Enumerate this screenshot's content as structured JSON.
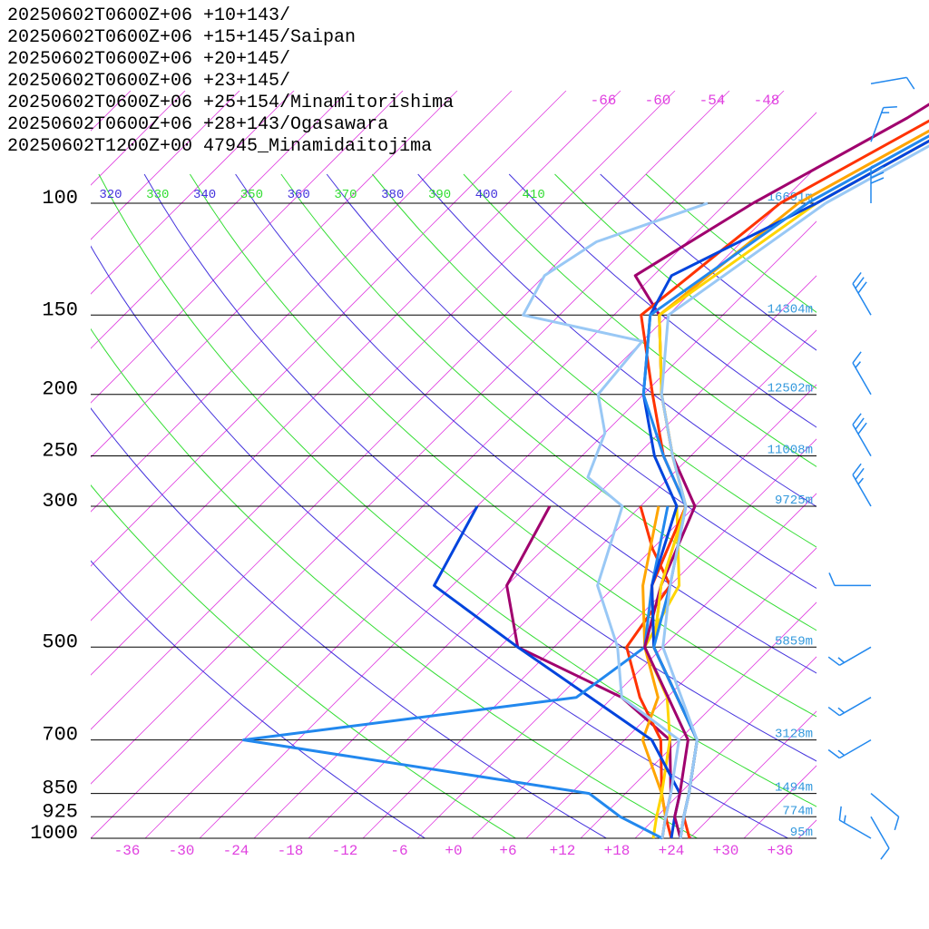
{
  "chart_data": {
    "type": "line",
    "title": "",
    "xlabel": "",
    "ylabel": "",
    "xlim": [
      -40,
      40
    ],
    "ylim_hpa": [
      1000,
      100
    ],
    "pressure_levels": [
      100,
      150,
      200,
      250,
      300,
      500,
      700,
      850,
      925,
      1000
    ],
    "height_labels": [
      "16691m",
      "14304m",
      "12502m",
      "11008m",
      "9725m",
      "5859m",
      "3128m",
      "1494m",
      "774m",
      "95m"
    ],
    "x_tick_labels": [
      "-36",
      "-30",
      "-24",
      "-18",
      "-12",
      "-6",
      "+0",
      "+6",
      "+12",
      "+18",
      "+24",
      "+30",
      "+36"
    ],
    "x_ticks": [
      -36,
      -30,
      -24,
      -18,
      -12,
      -6,
      0,
      6,
      12,
      18,
      24,
      30,
      36
    ],
    "theta_labels": [
      "320",
      "330",
      "340",
      "350",
      "360",
      "370",
      "380",
      "390",
      "400",
      "410"
    ],
    "upper_isotherm_labels": [
      "-66",
      "-60",
      "-54",
      "-48"
    ],
    "grid": true,
    "legend_position": "top-left",
    "series": [
      {
        "name": "20250602T0600Z+06 +10+143/",
        "color": "#a0006e",
        "temperature": [
          [
            1000,
            25
          ],
          [
            925,
            22
          ],
          [
            850,
            20
          ],
          [
            700,
            15
          ],
          [
            500,
            0
          ],
          [
            400,
            -5
          ],
          [
            300,
            -10
          ],
          [
            250,
            -18
          ],
          [
            200,
            -26
          ],
          [
            150,
            -35
          ],
          [
            130,
            -42
          ],
          [
            100,
            -37
          ]
        ],
        "dewpoint": [
          [
            1000,
            23
          ],
          [
            925,
            21
          ],
          [
            850,
            19
          ],
          [
            700,
            13
          ],
          [
            600,
            3
          ],
          [
            500,
            -14
          ],
          [
            400,
            -22
          ],
          [
            300,
            -26
          ]
        ]
      },
      {
        "name": "20250602T0600Z+06 +15+145/Saipan",
        "color": "#ff3300",
        "temperature": [
          [
            1000,
            26
          ],
          [
            925,
            23
          ],
          [
            850,
            21
          ],
          [
            700,
            16
          ],
          [
            500,
            1
          ],
          [
            400,
            -6
          ],
          [
            300,
            -11
          ],
          [
            250,
            -19
          ],
          [
            200,
            -27
          ],
          [
            150,
            -37
          ],
          [
            100,
            -34
          ]
        ],
        "dewpoint": [
          [
            1000,
            24
          ],
          [
            925,
            21
          ],
          [
            850,
            18
          ],
          [
            700,
            12
          ],
          [
            600,
            5
          ],
          [
            500,
            -2
          ],
          [
            400,
            -4
          ],
          [
            350,
            -10
          ],
          [
            300,
            -16
          ]
        ]
      },
      {
        "name": "20250602T0600Z+06 +20+145/",
        "color": "#ffa500",
        "temperature": [
          [
            1000,
            25
          ],
          [
            925,
            23
          ],
          [
            850,
            21
          ],
          [
            700,
            16
          ],
          [
            500,
            1
          ],
          [
            400,
            -5
          ],
          [
            300,
            -11
          ],
          [
            250,
            -18
          ],
          [
            200,
            -26
          ],
          [
            150,
            -35
          ],
          [
            100,
            -32
          ]
        ],
        "dewpoint": [
          [
            1000,
            23
          ],
          [
            925,
            21
          ],
          [
            850,
            18
          ],
          [
            700,
            10
          ],
          [
            600,
            7
          ],
          [
            500,
            0
          ],
          [
            400,
            -7
          ],
          [
            300,
            -14
          ]
        ]
      },
      {
        "name": "20250602T0600Z+06 +23+145/",
        "color": "#ffd500",
        "temperature": [
          [
            1000,
            25
          ],
          [
            925,
            23
          ],
          [
            850,
            21
          ],
          [
            700,
            16
          ],
          [
            500,
            1
          ],
          [
            400,
            -5
          ],
          [
            300,
            -11
          ],
          [
            250,
            -18
          ],
          [
            200,
            -26
          ],
          [
            150,
            -35
          ],
          [
            100,
            -30
          ]
        ],
        "dewpoint": [
          [
            1000,
            22
          ],
          [
            925,
            20
          ],
          [
            850,
            18
          ],
          [
            700,
            13
          ],
          [
            600,
            8
          ],
          [
            500,
            0
          ],
          [
            400,
            -3
          ],
          [
            300,
            -12
          ]
        ]
      },
      {
        "name": "20250602T0600Z+06 +25+154/Minamitorishima",
        "color": "#0044dd",
        "temperature": [
          [
            1000,
            25
          ],
          [
            925,
            23
          ],
          [
            850,
            21
          ],
          [
            700,
            16
          ],
          [
            500,
            1
          ],
          [
            400,
            -6
          ],
          [
            300,
            -12
          ],
          [
            250,
            -20
          ],
          [
            200,
            -28
          ],
          [
            150,
            -36
          ],
          [
            130,
            -38
          ],
          [
            100,
            -30
          ]
        ],
        "dewpoint": [
          [
            1000,
            24
          ],
          [
            925,
            22
          ],
          [
            850,
            20
          ],
          [
            700,
            11
          ],
          [
            500,
            -14
          ],
          [
            400,
            -30
          ],
          [
            300,
            -34
          ]
        ]
      },
      {
        "name": "20250602T0600Z+06 +28+143/Ogasawara",
        "color": "#2288ee",
        "temperature": [
          [
            1000,
            25
          ],
          [
            925,
            23
          ],
          [
            850,
            21
          ],
          [
            700,
            16
          ],
          [
            500,
            1
          ],
          [
            400,
            -4
          ],
          [
            300,
            -11
          ],
          [
            250,
            -19
          ],
          [
            200,
            -28
          ],
          [
            150,
            -36
          ],
          [
            100,
            -31
          ]
        ],
        "dewpoint": [
          [
            1000,
            23
          ],
          [
            925,
            16
          ],
          [
            850,
            10
          ],
          [
            700,
            -34
          ],
          [
            600,
            -2
          ],
          [
            500,
            0
          ],
          [
            400,
            -6
          ],
          [
            300,
            -13
          ]
        ]
      },
      {
        "name": "20250602T1200Z+00 47945_Minamidaitojima",
        "color": "#99c8f5",
        "temperature": [
          [
            1000,
            25
          ],
          [
            925,
            23
          ],
          [
            850,
            21
          ],
          [
            700,
            16
          ],
          [
            500,
            2
          ],
          [
            400,
            -4
          ],
          [
            300,
            -11
          ],
          [
            250,
            -18
          ],
          [
            200,
            -26
          ],
          [
            150,
            -34
          ],
          [
            100,
            -29
          ]
        ],
        "dewpoint": [
          [
            1000,
            23
          ],
          [
            925,
            21
          ],
          [
            850,
            19
          ],
          [
            700,
            14
          ],
          [
            600,
            3
          ],
          [
            500,
            -3
          ],
          [
            400,
            -12
          ],
          [
            300,
            -18
          ],
          [
            270,
            -25
          ],
          [
            230,
            -28
          ],
          [
            200,
            -33
          ],
          [
            165,
            -34
          ],
          [
            150,
            -50
          ],
          [
            130,
            -52
          ],
          [
            115,
            -50
          ],
          [
            100,
            -42
          ]
        ]
      }
    ],
    "wind_barbs": [
      {
        "pressure": 1000,
        "speed_kt": 15,
        "direction_deg": 300
      },
      {
        "pressure": 925,
        "speed_kt": 10,
        "direction_deg": 150
      },
      {
        "pressure": 850,
        "speed_kt": 10,
        "direction_deg": 130
      },
      {
        "pressure": 700,
        "speed_kt": 15,
        "direction_deg": 240
      },
      {
        "pressure": 600,
        "speed_kt": 15,
        "direction_deg": 240
      },
      {
        "pressure": 500,
        "speed_kt": 15,
        "direction_deg": 240
      },
      {
        "pressure": 400,
        "speed_kt": 10,
        "direction_deg": 270
      },
      {
        "pressure": 300,
        "speed_kt": 25,
        "direction_deg": 330
      },
      {
        "pressure": 250,
        "speed_kt": 30,
        "direction_deg": 330
      },
      {
        "pressure": 200,
        "speed_kt": 15,
        "direction_deg": 330
      },
      {
        "pressure": 150,
        "speed_kt": 30,
        "direction_deg": 330
      },
      {
        "pressure": 100,
        "speed_kt": 40,
        "direction_deg": 360
      },
      {
        "pressure": 70,
        "speed_kt": 15,
        "direction_deg": 20
      },
      {
        "pressure": 50,
        "speed_kt": 10,
        "direction_deg": 80
      }
    ]
  }
}
